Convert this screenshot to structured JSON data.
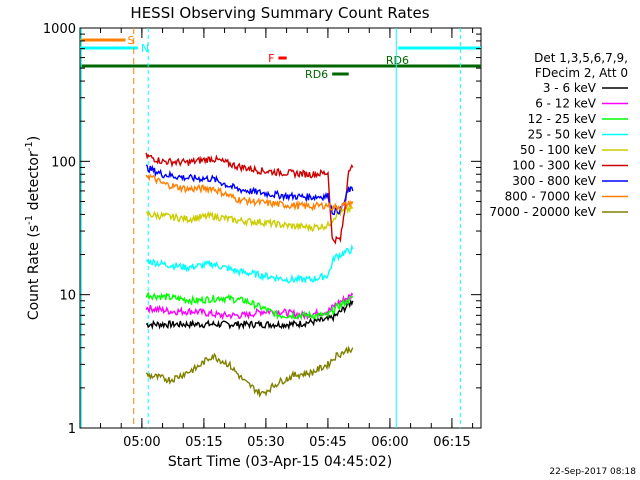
{
  "chart_data": {
    "type": "line",
    "title": "HESSI Observing Summary Count Rates",
    "xlabel": "Start Time (03-Apr-15 04:45:02)",
    "ylabel_main": "Count Rate (s",
    "ylabel_sup1": "-1",
    "ylabel_mid": " detector",
    "ylabel_sup2": "-1",
    "ylabel_end": ")",
    "yscale": "log",
    "ylim": [
      1,
      1000
    ],
    "xlim_minutes": [
      0,
      97
    ],
    "ytick_labels": [
      "1",
      "10",
      "100",
      "1000"
    ],
    "xtick_labels": [
      "05:00",
      "05:15",
      "05:30",
      "05:45",
      "06:00",
      "06:15"
    ],
    "footer_date": "22-Sep-2017 08:18",
    "legend": {
      "header_line1": "Det 1,3,5,6,7,9,",
      "header_line2": "FDecim 2, Att 0",
      "placement": "right"
    },
    "series": [
      {
        "name": "3 - 6 keV",
        "color": "#000000",
        "points": [
          [
            16,
            6
          ],
          [
            22,
            6
          ],
          [
            30,
            6
          ],
          [
            38,
            6
          ],
          [
            46,
            6
          ],
          [
            52,
            6
          ],
          [
            60,
            6.5
          ],
          [
            62,
            7
          ],
          [
            66,
            9
          ]
        ]
      },
      {
        "name": "6 - 12 keV",
        "color": "#ff00ff",
        "points": [
          [
            16,
            8
          ],
          [
            22,
            7.5
          ],
          [
            28,
            7.5
          ],
          [
            34,
            7
          ],
          [
            40,
            7
          ],
          [
            44,
            7.5
          ],
          [
            48,
            7.5
          ],
          [
            54,
            7
          ],
          [
            60,
            7.5
          ],
          [
            62,
            8.5
          ],
          [
            66,
            10
          ]
        ]
      },
      {
        "name": "12 - 25 keV",
        "color": "#00ff00",
        "points": [
          [
            16,
            10
          ],
          [
            22,
            9.5
          ],
          [
            28,
            9
          ],
          [
            34,
            9.5
          ],
          [
            40,
            9
          ],
          [
            44,
            8
          ],
          [
            48,
            7
          ],
          [
            54,
            7
          ],
          [
            60,
            7
          ],
          [
            62,
            8
          ],
          [
            66,
            9.5
          ]
        ]
      },
      {
        "name": "25 - 50 keV",
        "color": "#00ffff",
        "points": [
          [
            16,
            18
          ],
          [
            20,
            17
          ],
          [
            26,
            16
          ],
          [
            32,
            17
          ],
          [
            38,
            15
          ],
          [
            44,
            14
          ],
          [
            50,
            13
          ],
          [
            56,
            13
          ],
          [
            60,
            14
          ],
          [
            61.5,
            19
          ],
          [
            63,
            20
          ],
          [
            66,
            22
          ]
        ]
      },
      {
        "name": "50 - 100 keV",
        "color": "#cccc00",
        "points": [
          [
            16,
            40
          ],
          [
            20,
            39
          ],
          [
            26,
            37
          ],
          [
            32,
            39
          ],
          [
            38,
            36
          ],
          [
            44,
            35
          ],
          [
            50,
            33
          ],
          [
            56,
            32
          ],
          [
            60,
            33
          ],
          [
            62,
            40
          ],
          [
            66,
            45
          ]
        ]
      },
      {
        "name": "100 - 300 keV",
        "color": "#cc0000",
        "points": [
          [
            16,
            110
          ],
          [
            20,
            100
          ],
          [
            26,
            98
          ],
          [
            32,
            105
          ],
          [
            38,
            92
          ],
          [
            44,
            85
          ],
          [
            50,
            82
          ],
          [
            56,
            80
          ],
          [
            60,
            82
          ],
          [
            61,
            26
          ],
          [
            63,
            26
          ],
          [
            64,
            42
          ],
          [
            65,
            90
          ],
          [
            66,
            90
          ]
        ]
      },
      {
        "name": "300 - 800 keV",
        "color": "#0000ff",
        "points": [
          [
            16,
            90
          ],
          [
            20,
            80
          ],
          [
            26,
            75
          ],
          [
            32,
            74
          ],
          [
            38,
            62
          ],
          [
            44,
            58
          ],
          [
            50,
            55
          ],
          [
            56,
            54
          ],
          [
            60,
            55
          ],
          [
            61,
            42
          ],
          [
            63,
            43
          ],
          [
            64,
            50
          ],
          [
            65,
            62
          ],
          [
            66,
            60
          ]
        ]
      },
      {
        "name": "800 - 7000 keV",
        "color": "#ff8000",
        "points": [
          [
            16,
            80
          ],
          [
            20,
            68
          ],
          [
            26,
            62
          ],
          [
            32,
            63
          ],
          [
            38,
            52
          ],
          [
            44,
            49
          ],
          [
            50,
            47
          ],
          [
            56,
            46
          ],
          [
            60,
            47
          ],
          [
            61,
            45
          ],
          [
            63,
            46
          ],
          [
            64,
            47
          ],
          [
            65,
            48
          ],
          [
            66,
            50
          ]
        ]
      },
      {
        "name": "7000 - 20000 keV",
        "color": "#808000",
        "points": [
          [
            16,
            2.5
          ],
          [
            22,
            2.3
          ],
          [
            28,
            2.8
          ],
          [
            32,
            3.5
          ],
          [
            36,
            3
          ],
          [
            40,
            2.2
          ],
          [
            44,
            1.8
          ],
          [
            48,
            2.2
          ],
          [
            52,
            2.5
          ],
          [
            56,
            2.6
          ],
          [
            60,
            3
          ],
          [
            62,
            3.5
          ],
          [
            66,
            4
          ]
        ]
      }
    ],
    "flags": [
      {
        "label": "S",
        "color": "#ff8000",
        "start": 0,
        "end": 11
      },
      {
        "label": "N",
        "color": "#00ffff",
        "start": 0,
        "end": 14
      },
      {
        "label": "F",
        "color": "#ff0000",
        "start": 48,
        "end": 50
      },
      {
        "label": "RD6",
        "color": "#006600",
        "start": 0,
        "end": 97
      },
      {
        "label": "RD6",
        "color": "#006600",
        "start": 61,
        "end": 65
      }
    ]
  }
}
